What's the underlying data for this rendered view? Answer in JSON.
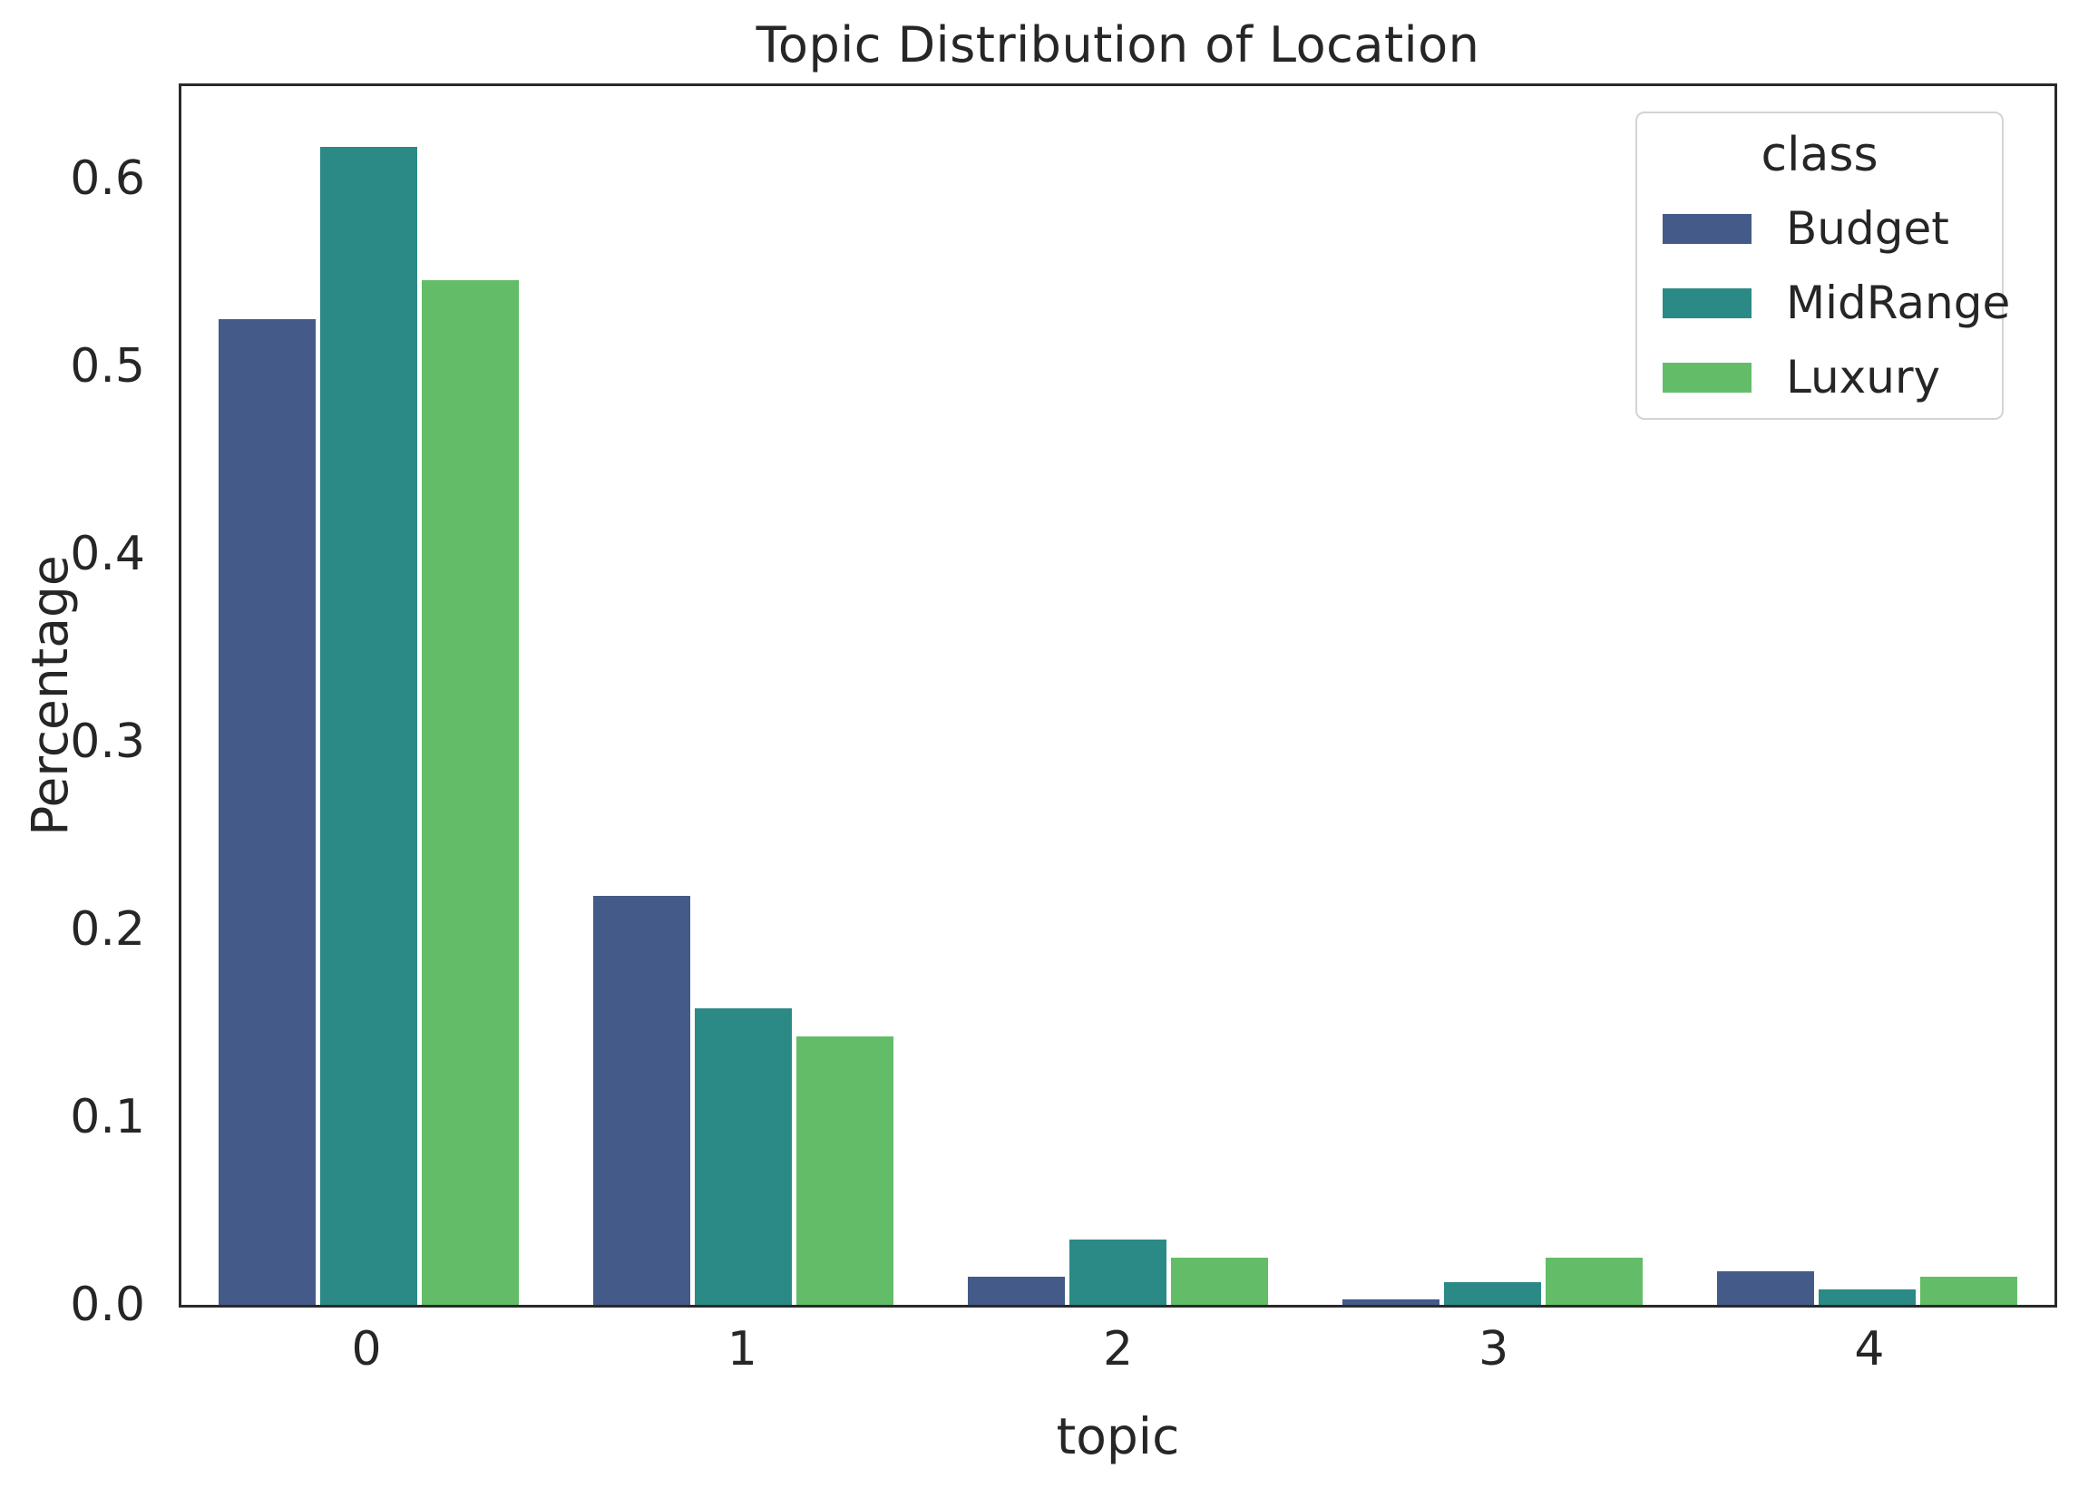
{
  "figure": {
    "title": "Topic Distribution of Location",
    "xlabel": "topic",
    "ylabel": "Percentage"
  },
  "axes": {
    "y_ticks": [
      "0.0",
      "0.1",
      "0.2",
      "0.3",
      "0.4",
      "0.5",
      "0.6"
    ],
    "y_tick_values": [
      0.0,
      0.1,
      0.2,
      0.3,
      0.4,
      0.5,
      0.6
    ],
    "x_ticks": [
      "0",
      "1",
      "2",
      "3",
      "4"
    ]
  },
  "legend": {
    "title": "class",
    "entries": [
      {
        "label": "Budget",
        "color": "#445a88"
      },
      {
        "label": "MidRange",
        "color": "#2b8a85"
      },
      {
        "label": "Luxury",
        "color": "#63bd68"
      }
    ]
  },
  "chart_data": {
    "type": "bar",
    "title": "Topic Distribution of Location",
    "xlabel": "topic",
    "ylabel": "Percentage",
    "categories": [
      "0",
      "1",
      "2",
      "3",
      "4"
    ],
    "series": [
      {
        "name": "Budget",
        "color": "#445a88",
        "values": [
          0.525,
          0.218,
          0.015,
          0.003,
          0.018
        ]
      },
      {
        "name": "MidRange",
        "color": "#2b8a85",
        "values": [
          0.617,
          0.158,
          0.035,
          0.012,
          0.008
        ]
      },
      {
        "name": "Luxury",
        "color": "#63bd68",
        "values": [
          0.546,
          0.143,
          0.025,
          0.025,
          0.015
        ]
      }
    ],
    "ylim": [
      0.0,
      0.65
    ],
    "grid": false,
    "legend_title": "class",
    "legend_position": "upper right"
  }
}
